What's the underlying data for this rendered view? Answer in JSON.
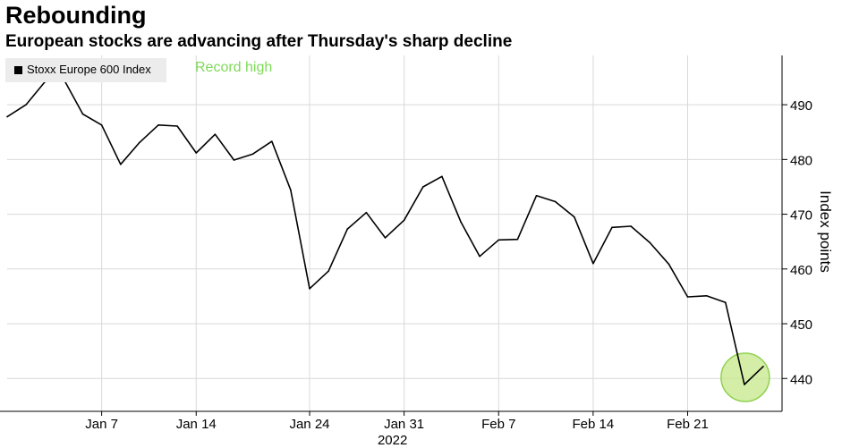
{
  "header": {
    "title": "Rebounding",
    "subtitle": "European stocks are advancing after Thursday's sharp decline"
  },
  "legend": {
    "label": "Stoxx Europe 600 Index"
  },
  "annotation": {
    "label": "Record high",
    "color": "#7ed957"
  },
  "colors": {
    "line": "#000000",
    "grid": "#d9d9d9",
    "legend_bg": "#ececec",
    "highlight_fill": "#c5e88a",
    "highlight_stroke": "#8fd14f"
  },
  "chart_data": {
    "type": "line",
    "title": "Rebounding",
    "subtitle": "European stocks are advancing after Thursday's sharp decline",
    "xlabel": "2022",
    "ylabel": "Index points",
    "ylim": [
      434,
      499
    ],
    "yticks": [
      440,
      450,
      460,
      470,
      480,
      490
    ],
    "xticks": [
      {
        "label": "Jan 7",
        "index": 5
      },
      {
        "label": "Jan 14",
        "index": 10
      },
      {
        "label": "Jan 24",
        "index": 16
      },
      {
        "label": "Jan 31",
        "index": 21
      },
      {
        "label": "Feb 7",
        "index": 26
      },
      {
        "label": "Feb 14",
        "index": 31
      },
      {
        "label": "Feb 21",
        "index": 36
      }
    ],
    "xlabel_under": "Jan 31",
    "grid": true,
    "legend_position": "top-left",
    "series": [
      {
        "name": "Stoxx Europe 600 Index",
        "values": [
          487.8,
          490.0,
          494.2,
          494.6,
          488.3,
          486.3,
          479.1,
          483.1,
          486.3,
          486.1,
          481.2,
          484.6,
          479.9,
          481.0,
          483.3,
          474.4,
          456.4,
          459.6,
          467.3,
          470.3,
          465.7,
          468.9,
          475.0,
          476.9,
          468.6,
          462.3,
          465.3,
          465.4,
          473.4,
          472.3,
          469.5,
          461.0,
          467.6,
          467.8,
          464.8,
          460.9,
          454.9,
          455.1,
          453.9,
          438.9,
          442.2
        ]
      }
    ],
    "highlight": {
      "index": 39,
      "label": "Thursday's sharp decline"
    }
  }
}
